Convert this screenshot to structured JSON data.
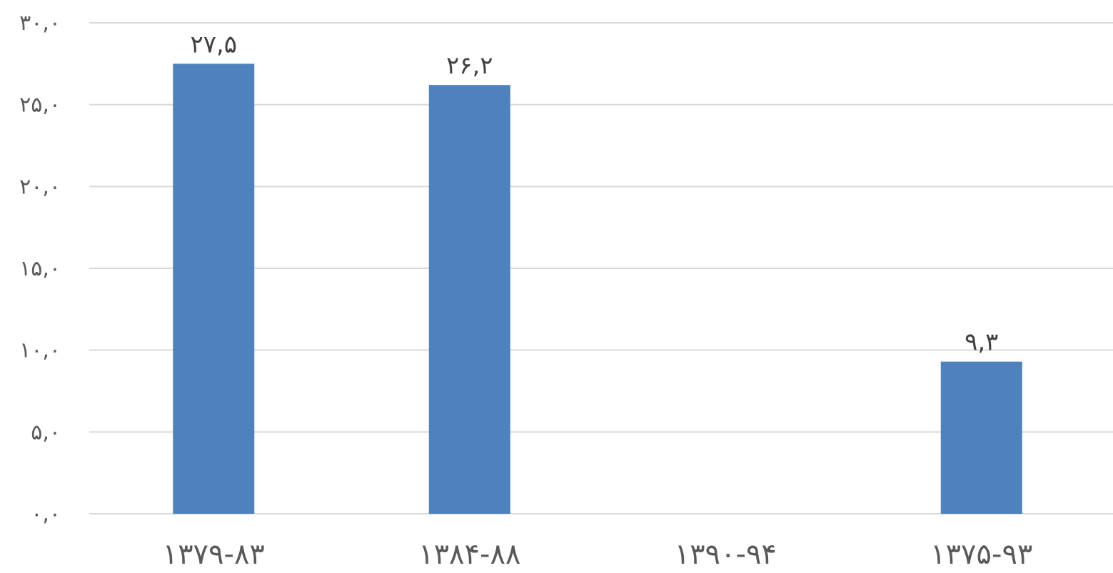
{
  "chart_data": {
    "type": "bar",
    "categories": [
      "۱۳۷۹-۸۳",
      "۱۳۸۴-۸۸",
      "۱۳۹۰-۹۴",
      "۱۳۷۵-۹۳"
    ],
    "values": [
      27.5,
      26.2,
      null,
      9.3
    ],
    "data_labels": [
      "۲۷,۵",
      "۲۶,۲",
      "",
      "۹,۳"
    ],
    "ylim": [
      0,
      30
    ],
    "yticks": [
      0,
      5,
      10,
      15,
      20,
      25,
      30
    ],
    "ytick_labels": [
      "۰,۰",
      "۵,۰",
      "۱۰,۰",
      "۱۵,۰",
      "۲۰,۰",
      "۲۵,۰",
      "۳۰,۰"
    ],
    "grid": true,
    "legend": "none",
    "title": "",
    "xlabel": "",
    "ylabel": ""
  },
  "colors": {
    "bar": "#4F81BD",
    "grid": "#D9D9D9",
    "tick_text": "#595959",
    "label_text": "#404040"
  }
}
